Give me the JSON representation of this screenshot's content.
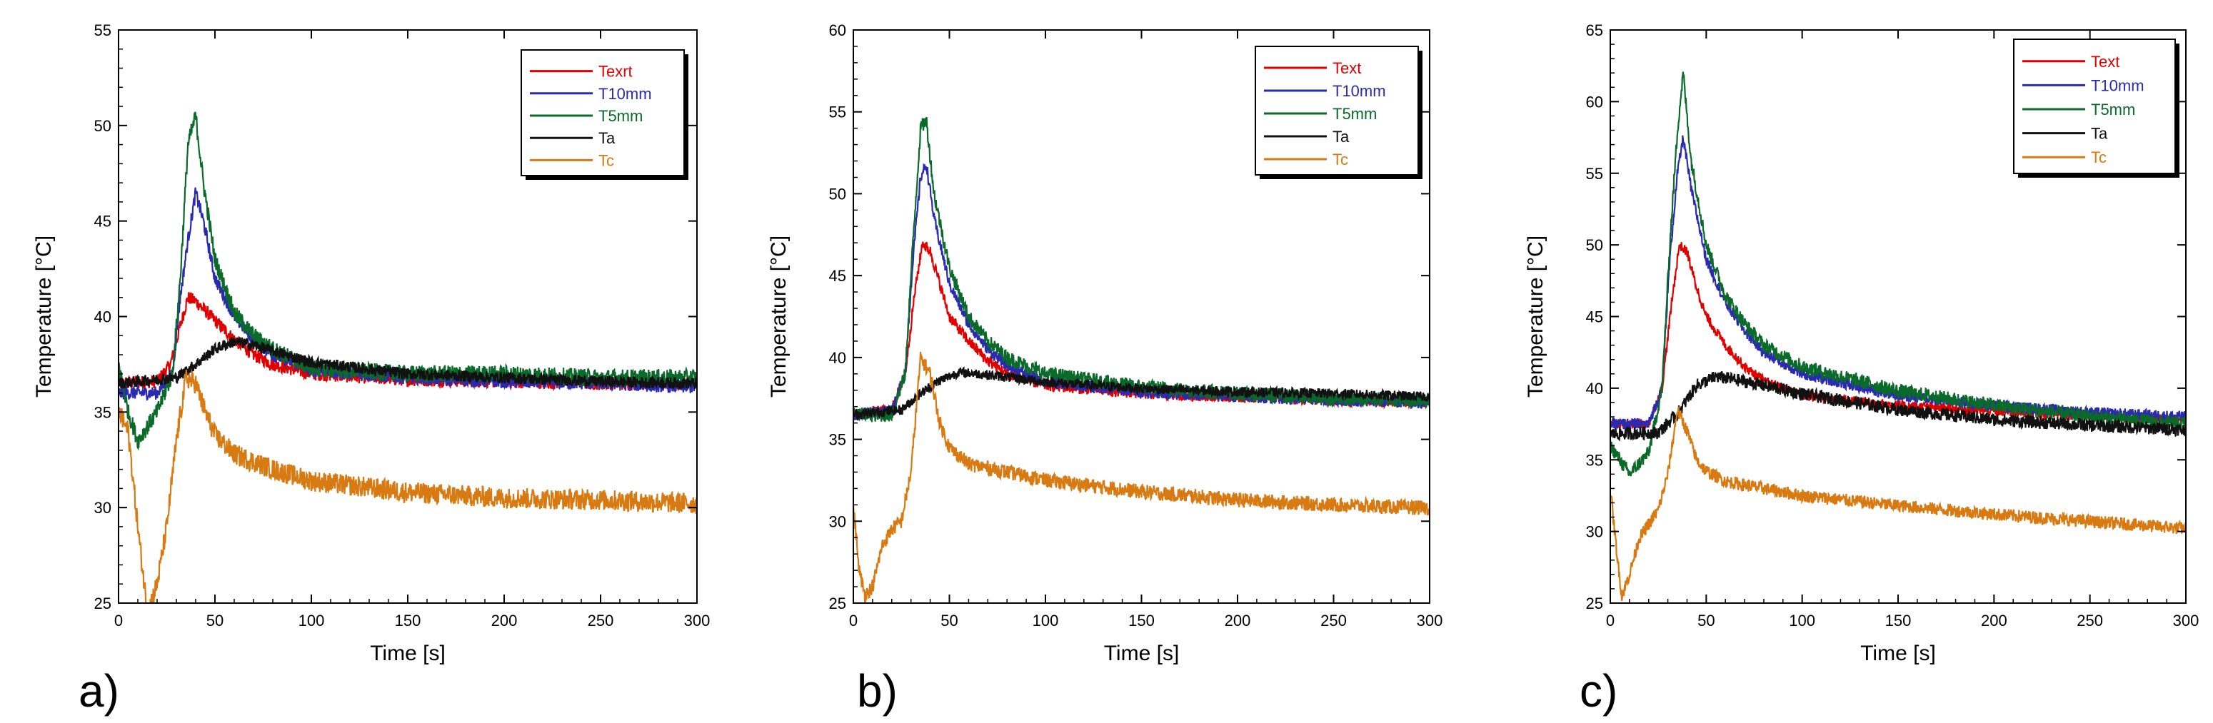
{
  "chart_data": [
    {
      "type": "line",
      "panel_label": "a)",
      "xlabel": "Time [s]",
      "ylabel": "Temperature [°C]",
      "xlim": [
        0,
        300
      ],
      "ylim": [
        25,
        55
      ],
      "xticks": [
        0,
        50,
        100,
        150,
        200,
        250,
        300
      ],
      "yticks": [
        25,
        30,
        35,
        40,
        45,
        50,
        55
      ],
      "grid": false,
      "legend_position": "top-right",
      "series": [
        {
          "name": "Texrt",
          "color": "#e00000",
          "noise": 0.35,
          "x": [
            0,
            20,
            27,
            32,
            36,
            40,
            45,
            50,
            60,
            70,
            80,
            100,
            150,
            200,
            250,
            300
          ],
          "y": [
            36.5,
            36.6,
            37.5,
            39.5,
            41,
            40.8,
            40.3,
            39.8,
            38.8,
            38,
            37.5,
            37,
            36.7,
            36.6,
            36.5,
            36.5
          ]
        },
        {
          "name": "T10mm",
          "color": "#2a2ab0",
          "noise": 0.35,
          "x": [
            0,
            20,
            28,
            32,
            36,
            40,
            44,
            50,
            60,
            70,
            80,
            100,
            150,
            200,
            250,
            300
          ],
          "y": [
            36,
            36,
            37,
            41,
            44,
            46.5,
            45,
            42,
            40,
            38.8,
            38,
            37.2,
            36.8,
            36.6,
            36.5,
            36.3
          ]
        },
        {
          "name": "T5mm",
          "color": "#0a6a2a",
          "noise": 0.45,
          "x": [
            0,
            5,
            10,
            20,
            28,
            32,
            36,
            40,
            44,
            50,
            60,
            70,
            80,
            100,
            150,
            200,
            250,
            300
          ],
          "y": [
            37.5,
            35,
            33.5,
            35,
            37,
            42,
            49,
            50.5,
            47,
            43,
            40.2,
            39,
            38.3,
            37.3,
            37,
            37,
            36.8,
            36.8
          ]
        },
        {
          "name": "Ta",
          "color": "#111111",
          "noise": 0.3,
          "x": [
            0,
            30,
            40,
            50,
            60,
            70,
            80,
            100,
            150,
            200,
            250,
            300
          ],
          "y": [
            36.5,
            36.8,
            37.5,
            38.3,
            38.7,
            38.5,
            38.2,
            37.6,
            37,
            36.8,
            36.6,
            36.5
          ]
        },
        {
          "name": "Tc",
          "color": "#d87a12",
          "noise": 0.55,
          "x": [
            0,
            5,
            10,
            15,
            20,
            25,
            30,
            35,
            40,
            45,
            50,
            60,
            80,
            100,
            150,
            200,
            250,
            300
          ],
          "y": [
            35,
            34,
            29,
            24.5,
            26,
            29,
            33.5,
            36.8,
            36.5,
            35,
            33.8,
            32.8,
            32,
            31.4,
            30.8,
            30.5,
            30.4,
            30.2
          ]
        }
      ]
    },
    {
      "type": "line",
      "panel_label": "b)",
      "xlabel": "Time [s]",
      "ylabel": "Temperature [°C]",
      "xlim": [
        0,
        300
      ],
      "ylim": [
        25,
        60
      ],
      "xticks": [
        0,
        50,
        100,
        150,
        200,
        250,
        300
      ],
      "yticks": [
        25,
        30,
        35,
        40,
        45,
        50,
        55,
        60
      ],
      "grid": false,
      "legend_position": "top-right",
      "series": [
        {
          "name": "Text",
          "color": "#e00000",
          "noise": 0.35,
          "x": [
            0,
            20,
            27,
            32,
            36,
            40,
            45,
            50,
            60,
            70,
            80,
            100,
            150,
            200,
            250,
            300
          ],
          "y": [
            36.5,
            36.8,
            39,
            44,
            47,
            46.5,
            44.5,
            42.5,
            41,
            39.8,
            39,
            38.3,
            37.8,
            37.6,
            37.4,
            37.3
          ]
        },
        {
          "name": "T10mm",
          "color": "#2a2ab0",
          "noise": 0.35,
          "x": [
            0,
            20,
            27,
            31,
            35,
            38,
            42,
            50,
            60,
            70,
            80,
            100,
            150,
            200,
            250,
            300
          ],
          "y": [
            36.5,
            36.8,
            39,
            46,
            51,
            51.8,
            48.5,
            44.5,
            42,
            40.5,
            39.5,
            38.5,
            37.9,
            37.6,
            37.4,
            37.2
          ]
        },
        {
          "name": "T5mm",
          "color": "#0a6a2a",
          "noise": 0.45,
          "x": [
            0,
            20,
            27,
            31,
            35,
            38,
            42,
            50,
            60,
            70,
            80,
            100,
            150,
            200,
            250,
            300
          ],
          "y": [
            36.5,
            36.5,
            39,
            47,
            54,
            54.5,
            50,
            45.5,
            42.5,
            41,
            40,
            39,
            38.2,
            37.8,
            37.5,
            37.4
          ]
        },
        {
          "name": "Ta",
          "color": "#111111",
          "noise": 0.3,
          "x": [
            0,
            25,
            35,
            45,
            55,
            65,
            80,
            100,
            150,
            200,
            250,
            300
          ],
          "y": [
            36.5,
            36.8,
            37.8,
            38.6,
            39.1,
            39,
            38.8,
            38.5,
            38.1,
            37.9,
            37.8,
            37.6
          ]
        },
        {
          "name": "Tc",
          "color": "#d87a12",
          "noise": 0.45,
          "x": [
            0,
            3,
            6,
            10,
            15,
            20,
            25,
            30,
            35,
            40,
            45,
            50,
            60,
            80,
            100,
            150,
            200,
            250,
            300
          ],
          "y": [
            31,
            27,
            25.5,
            26,
            28.5,
            29.5,
            30,
            33,
            40,
            39,
            36,
            34.5,
            33.5,
            33,
            32.5,
            31.8,
            31.3,
            31,
            30.8
          ]
        }
      ]
    },
    {
      "type": "line",
      "panel_label": "c)",
      "xlabel": "Time [s]",
      "ylabel": "Temperature [°C]",
      "xlim": [
        0,
        300
      ],
      "ylim": [
        25,
        65
      ],
      "xticks": [
        0,
        50,
        100,
        150,
        200,
        250,
        300
      ],
      "yticks": [
        25,
        30,
        35,
        40,
        45,
        50,
        55,
        60,
        65
      ],
      "grid": false,
      "legend_position": "top-right",
      "series": [
        {
          "name": "Text",
          "color": "#e00000",
          "noise": 0.35,
          "x": [
            0,
            20,
            27,
            32,
            36,
            40,
            45,
            50,
            60,
            70,
            80,
            100,
            150,
            200,
            250,
            300
          ],
          "y": [
            37.5,
            37.5,
            40,
            46,
            50,
            49.5,
            47,
            45,
            43,
            41.5,
            40.5,
            39.5,
            38.8,
            38.4,
            38.1,
            37.8
          ]
        },
        {
          "name": "T10mm",
          "color": "#2a2ab0",
          "noise": 0.4,
          "x": [
            0,
            20,
            27,
            31,
            35,
            38,
            42,
            50,
            60,
            70,
            80,
            100,
            150,
            200,
            250,
            300
          ],
          "y": [
            37.5,
            37.5,
            40,
            49,
            55,
            57.5,
            54,
            49,
            46,
            44,
            42.5,
            41,
            39.5,
            38.8,
            38.3,
            38
          ]
        },
        {
          "name": "T5mm",
          "color": "#0a6a2a",
          "noise": 0.5,
          "x": [
            0,
            10,
            20,
            27,
            31,
            35,
            38,
            42,
            50,
            60,
            70,
            80,
            100,
            150,
            200,
            250,
            300
          ],
          "y": [
            36,
            34,
            35.5,
            40,
            50,
            58,
            62,
            56,
            50,
            46.5,
            44.5,
            43,
            41.5,
            39.8,
            38.8,
            38,
            37.5
          ]
        },
        {
          "name": "Ta",
          "color": "#111111",
          "noise": 0.45,
          "x": [
            0,
            25,
            35,
            45,
            55,
            65,
            80,
            100,
            150,
            200,
            250,
            300
          ],
          "y": [
            36.8,
            36.9,
            38.2,
            40.2,
            40.8,
            40.6,
            40.2,
            39.6,
            38.5,
            37.8,
            37.4,
            37.1
          ]
        },
        {
          "name": "Tc",
          "color": "#d87a12",
          "noise": 0.45,
          "x": [
            0,
            3,
            6,
            10,
            15,
            20,
            25,
            30,
            35,
            40,
            45,
            50,
            60,
            80,
            100,
            150,
            200,
            250,
            300
          ],
          "y": [
            33,
            29,
            25.5,
            27,
            29.5,
            30.5,
            31.5,
            34,
            38.5,
            37,
            35,
            34.2,
            33.5,
            33,
            32.5,
            31.8,
            31.2,
            30.7,
            30.2
          ]
        }
      ]
    }
  ]
}
